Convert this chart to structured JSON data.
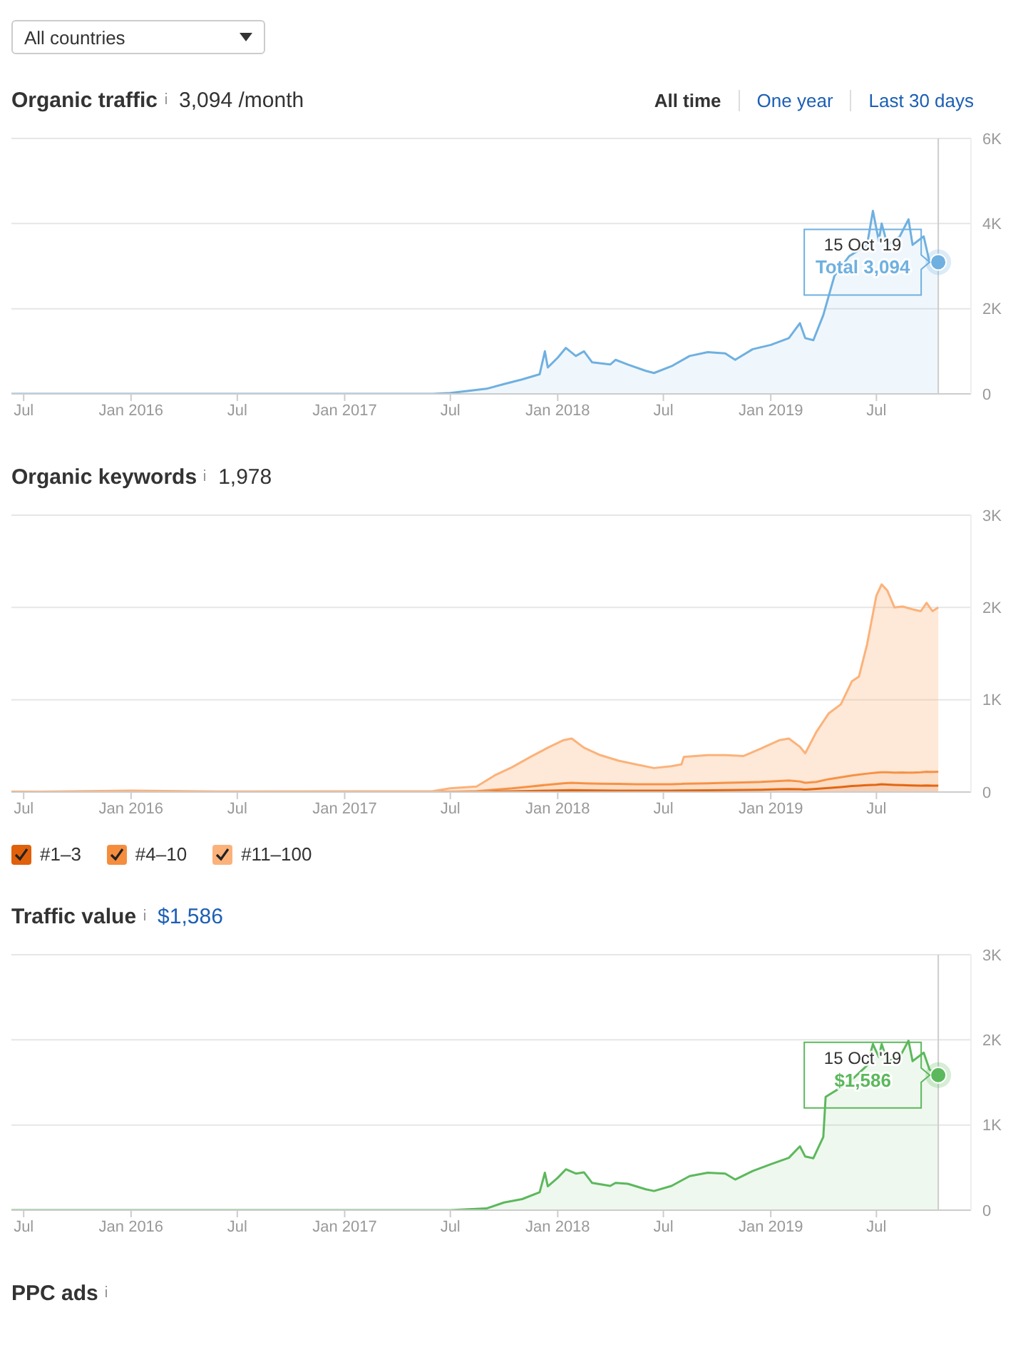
{
  "chart_data": [
    {
      "type": "area",
      "title": "Organic traffic",
      "subtitle": "3,094 /month",
      "x": [
        "2015-06-10",
        "2017-06-01",
        "2017-07-01",
        "2017-09-01",
        "2017-10-01",
        "2017-11-01",
        "2017-12-01",
        "2017-12-10",
        "2017-12-15",
        "2018-01-01",
        "2018-01-15",
        "2018-02-01",
        "2018-02-15",
        "2018-03-01",
        "2018-04-01",
        "2018-04-10",
        "2018-05-01",
        "2018-06-01",
        "2018-06-15",
        "2018-07-15",
        "2018-08-15",
        "2018-09-15",
        "2018-10-15",
        "2018-11-01",
        "2018-12-01",
        "2019-01-01",
        "2019-02-01",
        "2019-02-20",
        "2019-03-01",
        "2019-03-15",
        "2019-04-01",
        "2019-04-20",
        "2019-05-15",
        "2019-06-15",
        "2019-06-25",
        "2019-07-05",
        "2019-07-10",
        "2019-07-20",
        "2019-08-10",
        "2019-08-25",
        "2019-09-01",
        "2019-09-20",
        "2019-09-30",
        "2019-10-15"
      ],
      "series": [
        {
          "color": "#6fb0e0",
          "values": [
            0,
            0,
            20,
            120,
            230,
            340,
            460,
            1000,
            620,
            850,
            1080,
            890,
            1000,
            740,
            690,
            800,
            690,
            540,
            490,
            650,
            890,
            980,
            950,
            800,
            1050,
            1150,
            1310,
            1660,
            1310,
            1260,
            1850,
            2770,
            3230,
            3500,
            4300,
            3600,
            4000,
            3500,
            3700,
            4100,
            3500,
            3700,
            3100,
            3094
          ]
        }
      ],
      "xlim": [
        "2015-06-10",
        "2019-12-10"
      ],
      "xticks": [
        {
          "value": "2015-07-01",
          "label": "Jul"
        },
        {
          "value": "2016-01-01",
          "label": "Jan 2016"
        },
        {
          "value": "2016-07-01",
          "label": "Jul"
        },
        {
          "value": "2017-01-01",
          "label": "Jan 2017"
        },
        {
          "value": "2017-07-01",
          "label": "Jul"
        },
        {
          "value": "2018-01-01",
          "label": "Jan 2018"
        },
        {
          "value": "2018-07-01",
          "label": "Jul"
        },
        {
          "value": "2019-01-01",
          "label": "Jan 2019"
        },
        {
          "value": "2019-07-01",
          "label": "Jul"
        }
      ],
      "ylim": [
        0,
        6000
      ],
      "yticks": [
        {
          "value": 0,
          "label": "0"
        },
        {
          "value": 2000,
          "label": "2K"
        },
        {
          "value": 4000,
          "label": "4K"
        },
        {
          "value": 6000,
          "label": "6K"
        }
      ],
      "grid": "y",
      "ref_lines": [
        {
          "axis": "x",
          "value": "2019-10-15",
          "color": "#cccccc"
        }
      ],
      "annotations": [
        "All countries",
        "All time",
        "One year",
        "Last 30 days",
        {
          "text": "15 Oct '19",
          "x": "2019-10-15",
          "y": 3094
        },
        {
          "text": "Total 3,094",
          "x": "2019-10-15",
          "y": 3094
        }
      ]
    },
    {
      "type": "area",
      "title": "Organic keywords",
      "subtitle": "1,978",
      "stacked": true,
      "legend": "bottom left",
      "x": [
        "2015-06-10",
        "2016-01-01",
        "2016-06-01",
        "2017-06-01",
        "2017-07-01",
        "2017-08-15",
        "2017-09-15",
        "2017-10-15",
        "2017-11-15",
        "2017-12-15",
        "2018-01-10",
        "2018-01-25",
        "2018-02-15",
        "2018-03-15",
        "2018-04-15",
        "2018-05-15",
        "2018-06-15",
        "2018-07-15",
        "2018-08-01",
        "2018-08-05",
        "2018-09-15",
        "2018-10-15",
        "2018-11-15",
        "2018-12-15",
        "2019-01-15",
        "2019-02-01",
        "2019-02-20",
        "2019-03-01",
        "2019-03-20",
        "2019-04-10",
        "2019-05-01",
        "2019-05-20",
        "2019-06-01",
        "2019-06-15",
        "2019-07-01",
        "2019-07-10",
        "2019-07-20",
        "2019-08-01",
        "2019-08-15",
        "2019-09-01",
        "2019-09-15",
        "2019-09-25",
        "2019-10-05",
        "2019-10-15"
      ],
      "series": [
        {
          "name": "#1–3",
          "color": "#e0600b",
          "values": [
            0,
            0,
            0,
            0,
            0,
            2,
            5,
            8,
            12,
            16,
            20,
            22,
            20,
            18,
            16,
            15,
            15,
            16,
            18,
            18,
            20,
            22,
            24,
            26,
            30,
            32,
            30,
            28,
            35,
            45,
            55,
            65,
            70,
            75,
            80,
            85,
            82,
            78,
            75,
            72,
            70,
            72,
            70,
            70
          ]
        },
        {
          "name": "#4–10",
          "color": "#f58d3e",
          "values": [
            0,
            5,
            0,
            0,
            2,
            8,
            20,
            32,
            48,
            64,
            75,
            78,
            75,
            72,
            72,
            70,
            70,
            69,
            70,
            72,
            75,
            78,
            81,
            84,
            90,
            93,
            85,
            72,
            75,
            95,
            105,
            115,
            120,
            125,
            130,
            130,
            133,
            132,
            137,
            138,
            145,
            148,
            148,
            150
          ]
        },
        {
          "name": "#11–100",
          "color": "#fbb27a",
          "values": [
            0,
            10,
            5,
            10,
            38,
            50,
            155,
            230,
            320,
            400,
            465,
            480,
            385,
            310,
            252,
            215,
            175,
            195,
            212,
            290,
            305,
            300,
            285,
            360,
            440,
            455,
            375,
            320,
            540,
            710,
            790,
            1020,
            1060,
            1400,
            1920,
            2035,
            1965,
            1790,
            1798,
            1770,
            1745,
            1830,
            1742,
            1780
          ]
        }
      ],
      "xlim": [
        "2015-06-10",
        "2019-12-10"
      ],
      "xticks": [
        {
          "value": "2015-07-01",
          "label": "Jul"
        },
        {
          "value": "2016-01-01",
          "label": "Jan 2016"
        },
        {
          "value": "2016-07-01",
          "label": "Jul"
        },
        {
          "value": "2017-01-01",
          "label": "Jan 2017"
        },
        {
          "value": "2017-07-01",
          "label": "Jul"
        },
        {
          "value": "2018-01-01",
          "label": "Jan 2018"
        },
        {
          "value": "2018-07-01",
          "label": "Jul"
        },
        {
          "value": "2019-01-01",
          "label": "Jan 2019"
        },
        {
          "value": "2019-07-01",
          "label": "Jul"
        }
      ],
      "ylim": [
        0,
        3000
      ],
      "yticks": [
        0,
        {
          "value": 1000,
          "label": "1K"
        },
        {
          "value": 2000,
          "label": "2K"
        },
        {
          "value": 3000,
          "label": "3K"
        }
      ],
      "grid": "y"
    },
    {
      "type": "area",
      "title": "Traffic value",
      "subtitle": "$1,586",
      "x": [
        "2015-06-10",
        "2017-06-01",
        "2017-07-01",
        "2017-09-01",
        "2017-10-01",
        "2017-11-01",
        "2017-12-01",
        "2017-12-10",
        "2017-12-15",
        "2018-01-01",
        "2018-01-15",
        "2018-02-01",
        "2018-02-15",
        "2018-03-01",
        "2018-04-01",
        "2018-04-10",
        "2018-05-01",
        "2018-06-01",
        "2018-06-15",
        "2018-07-15",
        "2018-08-15",
        "2018-09-15",
        "2018-10-15",
        "2018-11-01",
        "2018-12-01",
        "2019-01-01",
        "2019-02-01",
        "2019-02-20",
        "2019-03-01",
        "2019-03-15",
        "2019-04-01",
        "2019-04-05",
        "2019-05-15",
        "2019-06-15",
        "2019-06-25",
        "2019-07-05",
        "2019-07-10",
        "2019-07-20",
        "2019-08-10",
        "2019-08-25",
        "2019-09-01",
        "2019-09-20",
        "2019-09-30",
        "2019-10-15"
      ],
      "series": [
        {
          "color": "#5cb85c",
          "values": [
            0,
            0,
            0,
            20,
            90,
            130,
            210,
            440,
            280,
            380,
            480,
            430,
            445,
            320,
            285,
            320,
            310,
            245,
            225,
            285,
            400,
            440,
            430,
            360,
            460,
            540,
            615,
            750,
            630,
            610,
            860,
            1330,
            1500,
            1700,
            1950,
            1800,
            1950,
            1750,
            1800,
            1990,
            1750,
            1850,
            1650,
            1586
          ]
        }
      ],
      "xlim": [
        "2015-06-10",
        "2019-12-10"
      ],
      "xticks": [
        {
          "value": "2015-07-01",
          "label": "Jul"
        },
        {
          "value": "2016-01-01",
          "label": "Jan 2016"
        },
        {
          "value": "2016-07-01",
          "label": "Jul"
        },
        {
          "value": "2017-01-01",
          "label": "Jan 2017"
        },
        {
          "value": "2017-07-01",
          "label": "Jul"
        },
        {
          "value": "2018-01-01",
          "label": "Jan 2018"
        },
        {
          "value": "2018-07-01",
          "label": "Jul"
        },
        {
          "value": "2019-01-01",
          "label": "Jan 2019"
        },
        {
          "value": "2019-07-01",
          "label": "Jul"
        }
      ],
      "ylim": [
        0,
        3000
      ],
      "yticks": [
        0,
        {
          "value": 1000,
          "label": "1K"
        },
        {
          "value": 2000,
          "label": "2K"
        },
        {
          "value": 3000,
          "label": "3K"
        }
      ],
      "grid": "y",
      "ref_lines": [
        {
          "axis": "x",
          "value": "2019-10-15",
          "color": "#cccccc"
        }
      ],
      "annotations": [
        {
          "text": "15 Oct '19",
          "x": "2019-10-15",
          "y": 1586
        },
        {
          "text": "$1,586",
          "x": "2019-10-15",
          "y": 1586
        },
        "PPC ads"
      ]
    }
  ]
}
